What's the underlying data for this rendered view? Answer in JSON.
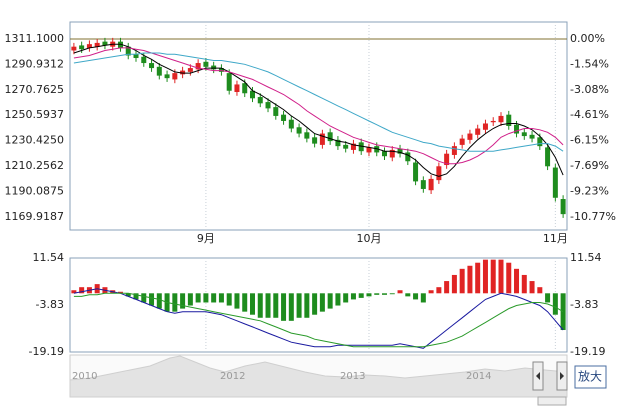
{
  "chart_data": [
    {
      "type": "candlestick",
      "categories": [
        null,
        null,
        null,
        null,
        null,
        null,
        null,
        null,
        null,
        null,
        null,
        null,
        null,
        null,
        null,
        null,
        null,
        "9月",
        null,
        null,
        null,
        null,
        null,
        null,
        null,
        null,
        null,
        null,
        null,
        null,
        null,
        null,
        null,
        null,
        null,
        null,
        null,
        null,
        "10月",
        null,
        null,
        null,
        null,
        null,
        null,
        null,
        null,
        null,
        null,
        null,
        null,
        null,
        null,
        null,
        null,
        null,
        null,
        null,
        null,
        null,
        null,
        null,
        "11月",
        null
      ],
      "open": [
        1302,
        1306,
        1304,
        1305,
        1309,
        1305,
        1309,
        1305,
        1299,
        1297,
        1292,
        1289,
        1283,
        1279,
        1283,
        1285,
        1287,
        1293,
        1290,
        1288,
        1284,
        1269,
        1276,
        1270,
        1265,
        1261,
        1257,
        1251,
        1247,
        1241,
        1237,
        1233,
        1227,
        1237,
        1231,
        1227,
        1223,
        1229,
        1221,
        1226,
        1222,
        1217,
        1224,
        1221,
        1213,
        1199,
        1191,
        1199,
        1211,
        1219,
        1227,
        1231,
        1235,
        1239,
        1245,
        1245,
        1251,
        1243,
        1237,
        1235,
        1233,
        1225,
        1209,
        1184
      ],
      "high": [
        1308,
        1309,
        1310,
        1311,
        1312,
        1312,
        1312,
        1308,
        1302,
        1300,
        1295,
        1292,
        1286,
        1287,
        1289,
        1291,
        1295,
        1296,
        1293,
        1291,
        1287,
        1278,
        1279,
        1273,
        1268,
        1264,
        1260,
        1254,
        1250,
        1244,
        1240,
        1236,
        1239,
        1240,
        1234,
        1230,
        1231,
        1232,
        1228,
        1229,
        1225,
        1226,
        1227,
        1224,
        1216,
        1202,
        1203,
        1213,
        1223,
        1229,
        1235,
        1239,
        1243,
        1247,
        1249,
        1253,
        1254,
        1246,
        1240,
        1238,
        1236,
        1228,
        1212,
        1187
      ],
      "low": [
        1299,
        1300,
        1301,
        1302,
        1303,
        1302,
        1301,
        1295,
        1293,
        1289,
        1285,
        1279,
        1277,
        1276,
        1280,
        1282,
        1284,
        1286,
        1284,
        1282,
        1267,
        1266,
        1265,
        1261,
        1257,
        1253,
        1247,
        1243,
        1237,
        1233,
        1229,
        1225,
        1224,
        1227,
        1223,
        1221,
        1220,
        1219,
        1218,
        1218,
        1215,
        1214,
        1217,
        1211,
        1195,
        1189,
        1188,
        1196,
        1208,
        1216,
        1224,
        1228,
        1232,
        1236,
        1242,
        1242,
        1239,
        1233,
        1231,
        1229,
        1223,
        1207,
        1182,
        1169
      ],
      "close": [
        1305,
        1303,
        1307,
        1308,
        1306,
        1309,
        1304,
        1298,
        1296,
        1292,
        1288,
        1282,
        1280,
        1284,
        1286,
        1288,
        1292,
        1289,
        1287,
        1285,
        1270,
        1275,
        1268,
        1264,
        1260,
        1256,
        1250,
        1246,
        1240,
        1236,
        1232,
        1228,
        1236,
        1230,
        1226,
        1224,
        1228,
        1222,
        1225,
        1221,
        1218,
        1223,
        1220,
        1214,
        1198,
        1192,
        1200,
        1210,
        1220,
        1226,
        1232,
        1236,
        1240,
        1244,
        1246,
        1250,
        1242,
        1236,
        1234,
        1232,
        1226,
        1210,
        1185,
        1172
      ],
      "up_color": "#e02424",
      "down_color": "#1e8c1e",
      "series": [
        {
          "color": "#000000",
          "values": [
            1300,
            1302,
            1304,
            1305,
            1306,
            1307,
            1307,
            1305,
            1302,
            1298,
            1295,
            1291,
            1288,
            1285,
            1284,
            1284,
            1286,
            1288,
            1288,
            1288,
            1285,
            1281,
            1277,
            1270,
            1267,
            1263,
            1259,
            1255,
            1250,
            1246,
            1241,
            1236,
            1234,
            1232,
            1230,
            1229,
            1227,
            1226,
            1225,
            1224,
            1222,
            1222,
            1221,
            1219,
            1215,
            1209,
            1204,
            1202,
            1204,
            1210,
            1218,
            1225,
            1231,
            1236,
            1240,
            1243,
            1244,
            1244,
            1242,
            1239,
            1234,
            1227,
            1217,
            1203
          ]
        },
        {
          "color": "#d0208a",
          "values": [
            1296,
            1297,
            1298,
            1300,
            1302,
            1303,
            1304,
            1304,
            1303,
            1302,
            1300,
            1298,
            1296,
            1294,
            1292,
            1290,
            1288,
            1287,
            1286,
            1286,
            1285,
            1283,
            1281,
            1279,
            1276,
            1273,
            1270,
            1267,
            1263,
            1259,
            1254,
            1250,
            1246,
            1242,
            1239,
            1236,
            1233,
            1231,
            1229,
            1227,
            1226,
            1225,
            1224,
            1223,
            1222,
            1220,
            1217,
            1214,
            1212,
            1212,
            1213,
            1215,
            1218,
            1222,
            1227,
            1233,
            1236,
            1238,
            1240,
            1240,
            1239,
            1237,
            1233,
            1227
          ]
        },
        {
          "color": "#3fa8c8",
          "values": [
            1292,
            1293,
            1294,
            1295,
            1296,
            1297,
            1298,
            1299,
            1299,
            1300,
            1300,
            1300,
            1299,
            1299,
            1298,
            1297,
            1296,
            1295,
            1294,
            1294,
            1293,
            1292,
            1291,
            1289,
            1287,
            1285,
            1282,
            1279,
            1276,
            1273,
            1270,
            1267,
            1264,
            1261,
            1258,
            1255,
            1252,
            1249,
            1246,
            1243,
            1240,
            1237,
            1235,
            1233,
            1231,
            1229,
            1228,
            1226,
            1225,
            1224,
            1223,
            1222,
            1222,
            1222,
            1222,
            1223,
            1224,
            1225,
            1226,
            1227,
            1228,
            1228,
            1226,
            1222
          ]
        }
      ],
      "ylim": [
        1159.4,
        1324.6
      ],
      "yticks": [
        {
          "value": 1311.1,
          "label": "1311.1000"
        },
        {
          "value": 1290.9312,
          "label": "1290.9312"
        },
        {
          "value": 1270.7625,
          "label": "1270.7625"
        },
        {
          "value": 1250.5937,
          "label": "1250.5937"
        },
        {
          "value": 1230.425,
          "label": "1230.4250"
        },
        {
          "value": 1210.2562,
          "label": "1210.2562"
        },
        {
          "value": 1190.0875,
          "label": "1190.0875"
        },
        {
          "value": 1169.9187,
          "label": "1169.9187"
        }
      ],
      "y2lim": [
        -11.57,
        1.03
      ],
      "y2ticks": [
        {
          "value": 0,
          "label": "0.00%"
        },
        {
          "value": -1.54,
          "label": "-1.54%"
        },
        {
          "value": -3.08,
          "label": "-3.08%"
        },
        {
          "value": -4.61,
          "label": "-4.61%"
        },
        {
          "value": -6.15,
          "label": "-6.15%"
        },
        {
          "value": -7.69,
          "label": "-7.69%"
        },
        {
          "value": -9.23,
          "label": "-9.23%"
        },
        {
          "value": -10.77,
          "label": "-10.77%"
        }
      ]
    },
    {
      "type": "macd",
      "values": [
        1,
        2,
        2,
        3,
        2,
        1,
        0.5,
        -1,
        -2,
        -3,
        -4,
        -5,
        -6,
        -6,
        -5,
        -4,
        -3,
        -3,
        -3,
        -3,
        -4,
        -5,
        -6,
        -7,
        -8,
        -8,
        -8,
        -9,
        -9,
        -8,
        -8,
        -7,
        -6,
        -5,
        -4,
        -3,
        -2,
        -1.5,
        -1,
        -0.5,
        -0.5,
        -0.3,
        1,
        -1,
        -2,
        -3,
        1,
        2,
        4,
        6,
        8,
        9,
        10,
        11,
        11,
        11,
        10,
        8,
        6,
        4,
        2,
        -3,
        -7,
        -12
      ],
      "up_color": "#e02424",
      "down_color": "#1e8c1e",
      "series": [
        {
          "color": "#1a1aa0",
          "values": [
            0,
            0.5,
            1,
            1.5,
            1,
            0.5,
            0,
            -1,
            -2,
            -3,
            -4,
            -5,
            -6,
            -6.5,
            -6,
            -6,
            -6,
            -6,
            -6.5,
            -7,
            -8,
            -9,
            -10,
            -11,
            -12,
            -13,
            -14,
            -15,
            -16,
            -16.5,
            -17,
            -17.5,
            -17.5,
            -17.5,
            -17,
            -17,
            -17,
            -17,
            -17,
            -17,
            -17,
            -17,
            -16.5,
            -17,
            -17.5,
            -18,
            -16,
            -14,
            -12,
            -10,
            -8,
            -6,
            -4,
            -2,
            -1,
            0,
            -0.5,
            -1,
            -2,
            -3,
            -4,
            -6,
            -9,
            -12
          ]
        },
        {
          "color": "#2a9a2a",
          "values": [
            -1,
            -1,
            -0.5,
            -0.5,
            0,
            0,
            0,
            0,
            -0.5,
            -1,
            -1.5,
            -2,
            -3,
            -3.5,
            -4,
            -4.5,
            -5,
            -5.5,
            -6,
            -6.5,
            -7,
            -7.5,
            -8,
            -8.5,
            -9,
            -10,
            -11,
            -12,
            -13,
            -13.5,
            -14,
            -15,
            -15.5,
            -16,
            -16.5,
            -17,
            -17.5,
            -17.5,
            -17.5,
            -17.5,
            -17.5,
            -17.5,
            -17.5,
            -17.5,
            -17.5,
            -17.5,
            -17,
            -16.5,
            -16,
            -15,
            -14,
            -12.5,
            -11,
            -9.5,
            -8,
            -6.5,
            -5,
            -4,
            -3.5,
            -3,
            -3,
            -3.5,
            -4.5,
            -6
          ]
        }
      ],
      "ylim": [
        -19.19,
        11.54
      ],
      "yticks": [
        11.54,
        -3.83,
        -19.19
      ]
    }
  ],
  "navigator": {
    "labels": [
      "2010",
      "2012",
      "2013",
      "2014"
    ],
    "button": "放大"
  }
}
